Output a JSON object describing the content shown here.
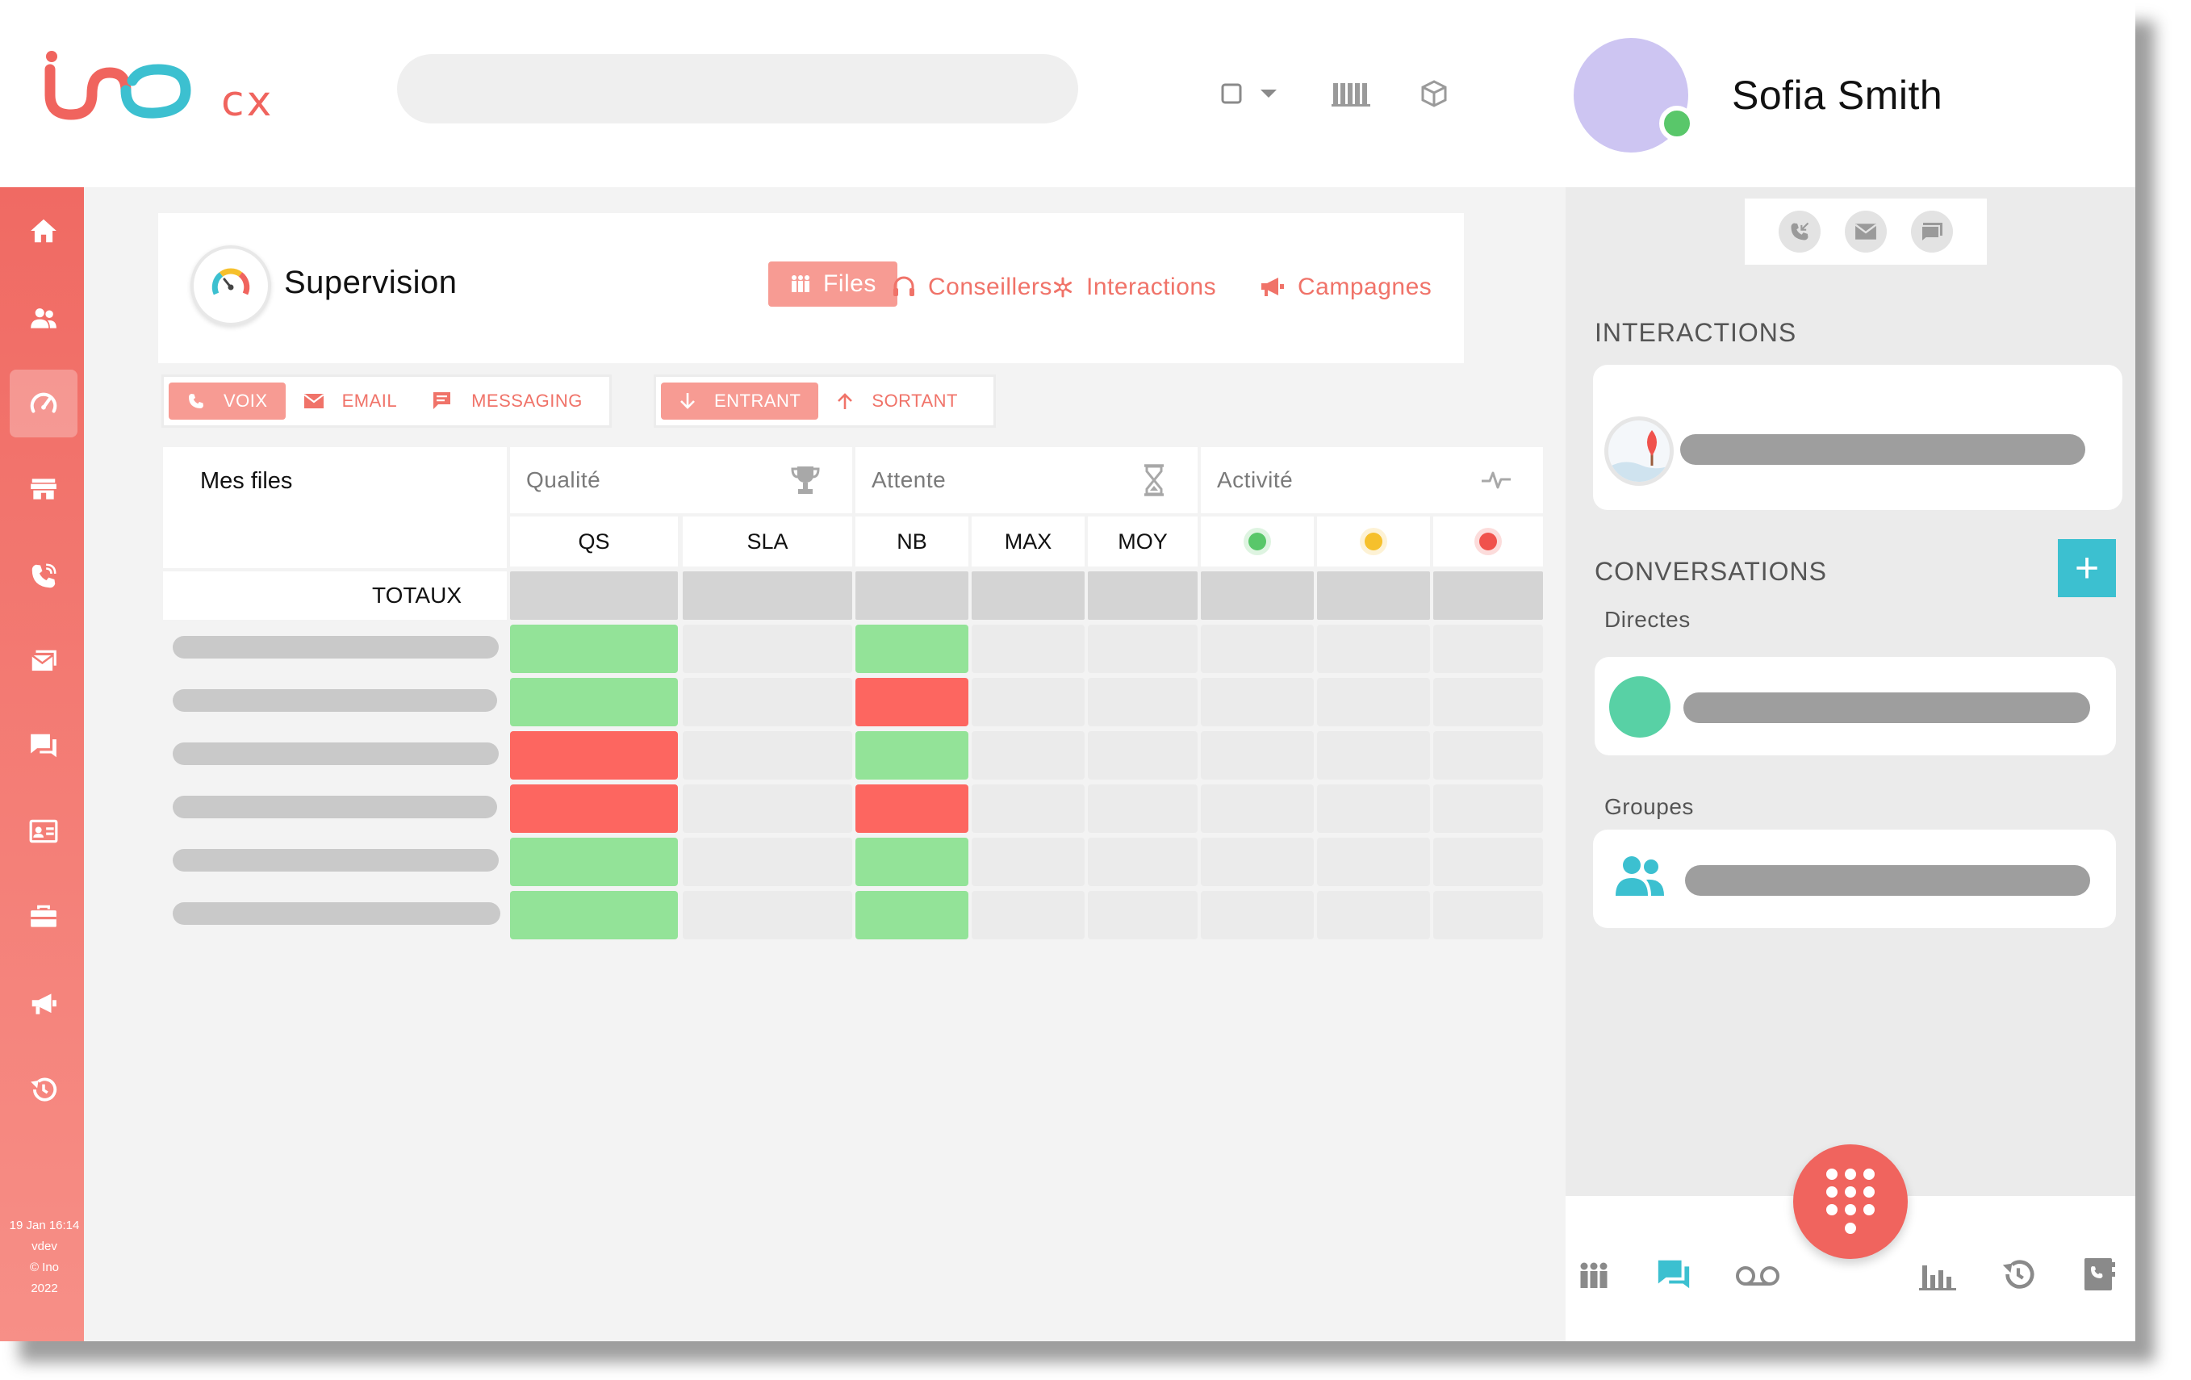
{
  "app": {
    "logo_text": "cx"
  },
  "header": {
    "search_placeholder": "",
    "user_name": "Sofia Smith",
    "user_status": "online"
  },
  "sidebar": {
    "items": [
      {
        "icon": "home-icon"
      },
      {
        "icon": "users-icon"
      },
      {
        "icon": "speedometer-icon",
        "active": true
      },
      {
        "icon": "store-icon"
      },
      {
        "icon": "phone-icon"
      },
      {
        "icon": "mail-icon"
      },
      {
        "icon": "chat-icon"
      },
      {
        "icon": "contact-card-icon"
      },
      {
        "icon": "briefcase-icon"
      },
      {
        "icon": "megaphone-icon"
      },
      {
        "icon": "history-icon"
      }
    ],
    "footer": {
      "date": "19 Jan 16:14",
      "env": "vdev",
      "copyright": "© Ino",
      "year": "2022"
    }
  },
  "supervision": {
    "title": "Supervision",
    "tabs": [
      {
        "label": "Files",
        "icon": "people-queue-icon",
        "active": true
      },
      {
        "label": "Conseillers",
        "icon": "headset-icon"
      },
      {
        "label": "Interactions",
        "icon": "asterisk-icon"
      },
      {
        "label": "Campagnes",
        "icon": "megaphone-icon"
      }
    ],
    "channel_filters": [
      {
        "label": "VOIX",
        "icon": "phone-icon",
        "active": true
      },
      {
        "label": "EMAIL",
        "icon": "mail-icon"
      },
      {
        "label": "MESSAGING",
        "icon": "chat-icon"
      }
    ],
    "direction_filters": [
      {
        "label": "ENTRANT",
        "icon": "arrow-down-icon",
        "active": true
      },
      {
        "label": "SORTANT",
        "icon": "arrow-up-icon"
      }
    ]
  },
  "table": {
    "row_header": "Mes files",
    "totals_label": "TOTAUX",
    "groups": [
      {
        "label": "Qualité",
        "icon": "trophy-icon"
      },
      {
        "label": "Attente",
        "icon": "hourglass-icon"
      },
      {
        "label": "Activité",
        "icon": "pulse-icon"
      }
    ],
    "columns": [
      "QS",
      "SLA",
      "NB",
      "MAX",
      "MOY"
    ],
    "activity_dots": [
      "#59c76a",
      "#f6c02c",
      "#f0524c"
    ],
    "status_colors": {
      "good": "#93e398",
      "bad": "#fd6660",
      "neutral": "#ebebeb",
      "total": "#d4d4d4"
    },
    "rows": [
      {
        "QS": "good",
        "NB": "good"
      },
      {
        "QS": "good",
        "NB": "bad"
      },
      {
        "QS": "bad",
        "NB": "good"
      },
      {
        "QS": "bad",
        "NB": "bad"
      },
      {
        "QS": "good",
        "NB": "good"
      },
      {
        "QS": "good",
        "NB": "good"
      }
    ]
  },
  "right_panel": {
    "channel_buttons": [
      "phone-missed-icon",
      "mail-icon",
      "chat-icon"
    ],
    "interactions_title": "INTERACTIONS",
    "conversations_title": "CONVERSATIONS",
    "add_button": "+",
    "directes_label": "Directes",
    "groupes_label": "Groupes"
  },
  "bottom_nav": [
    "team-icon",
    "chat-icon",
    "voicemail-icon",
    "dialpad-icon",
    "bar-chart-icon",
    "history-icon",
    "address-book-icon"
  ],
  "colors": {
    "accent": "#f0645e",
    "teal": "#3cc0d0",
    "presence": "#59c76a"
  }
}
